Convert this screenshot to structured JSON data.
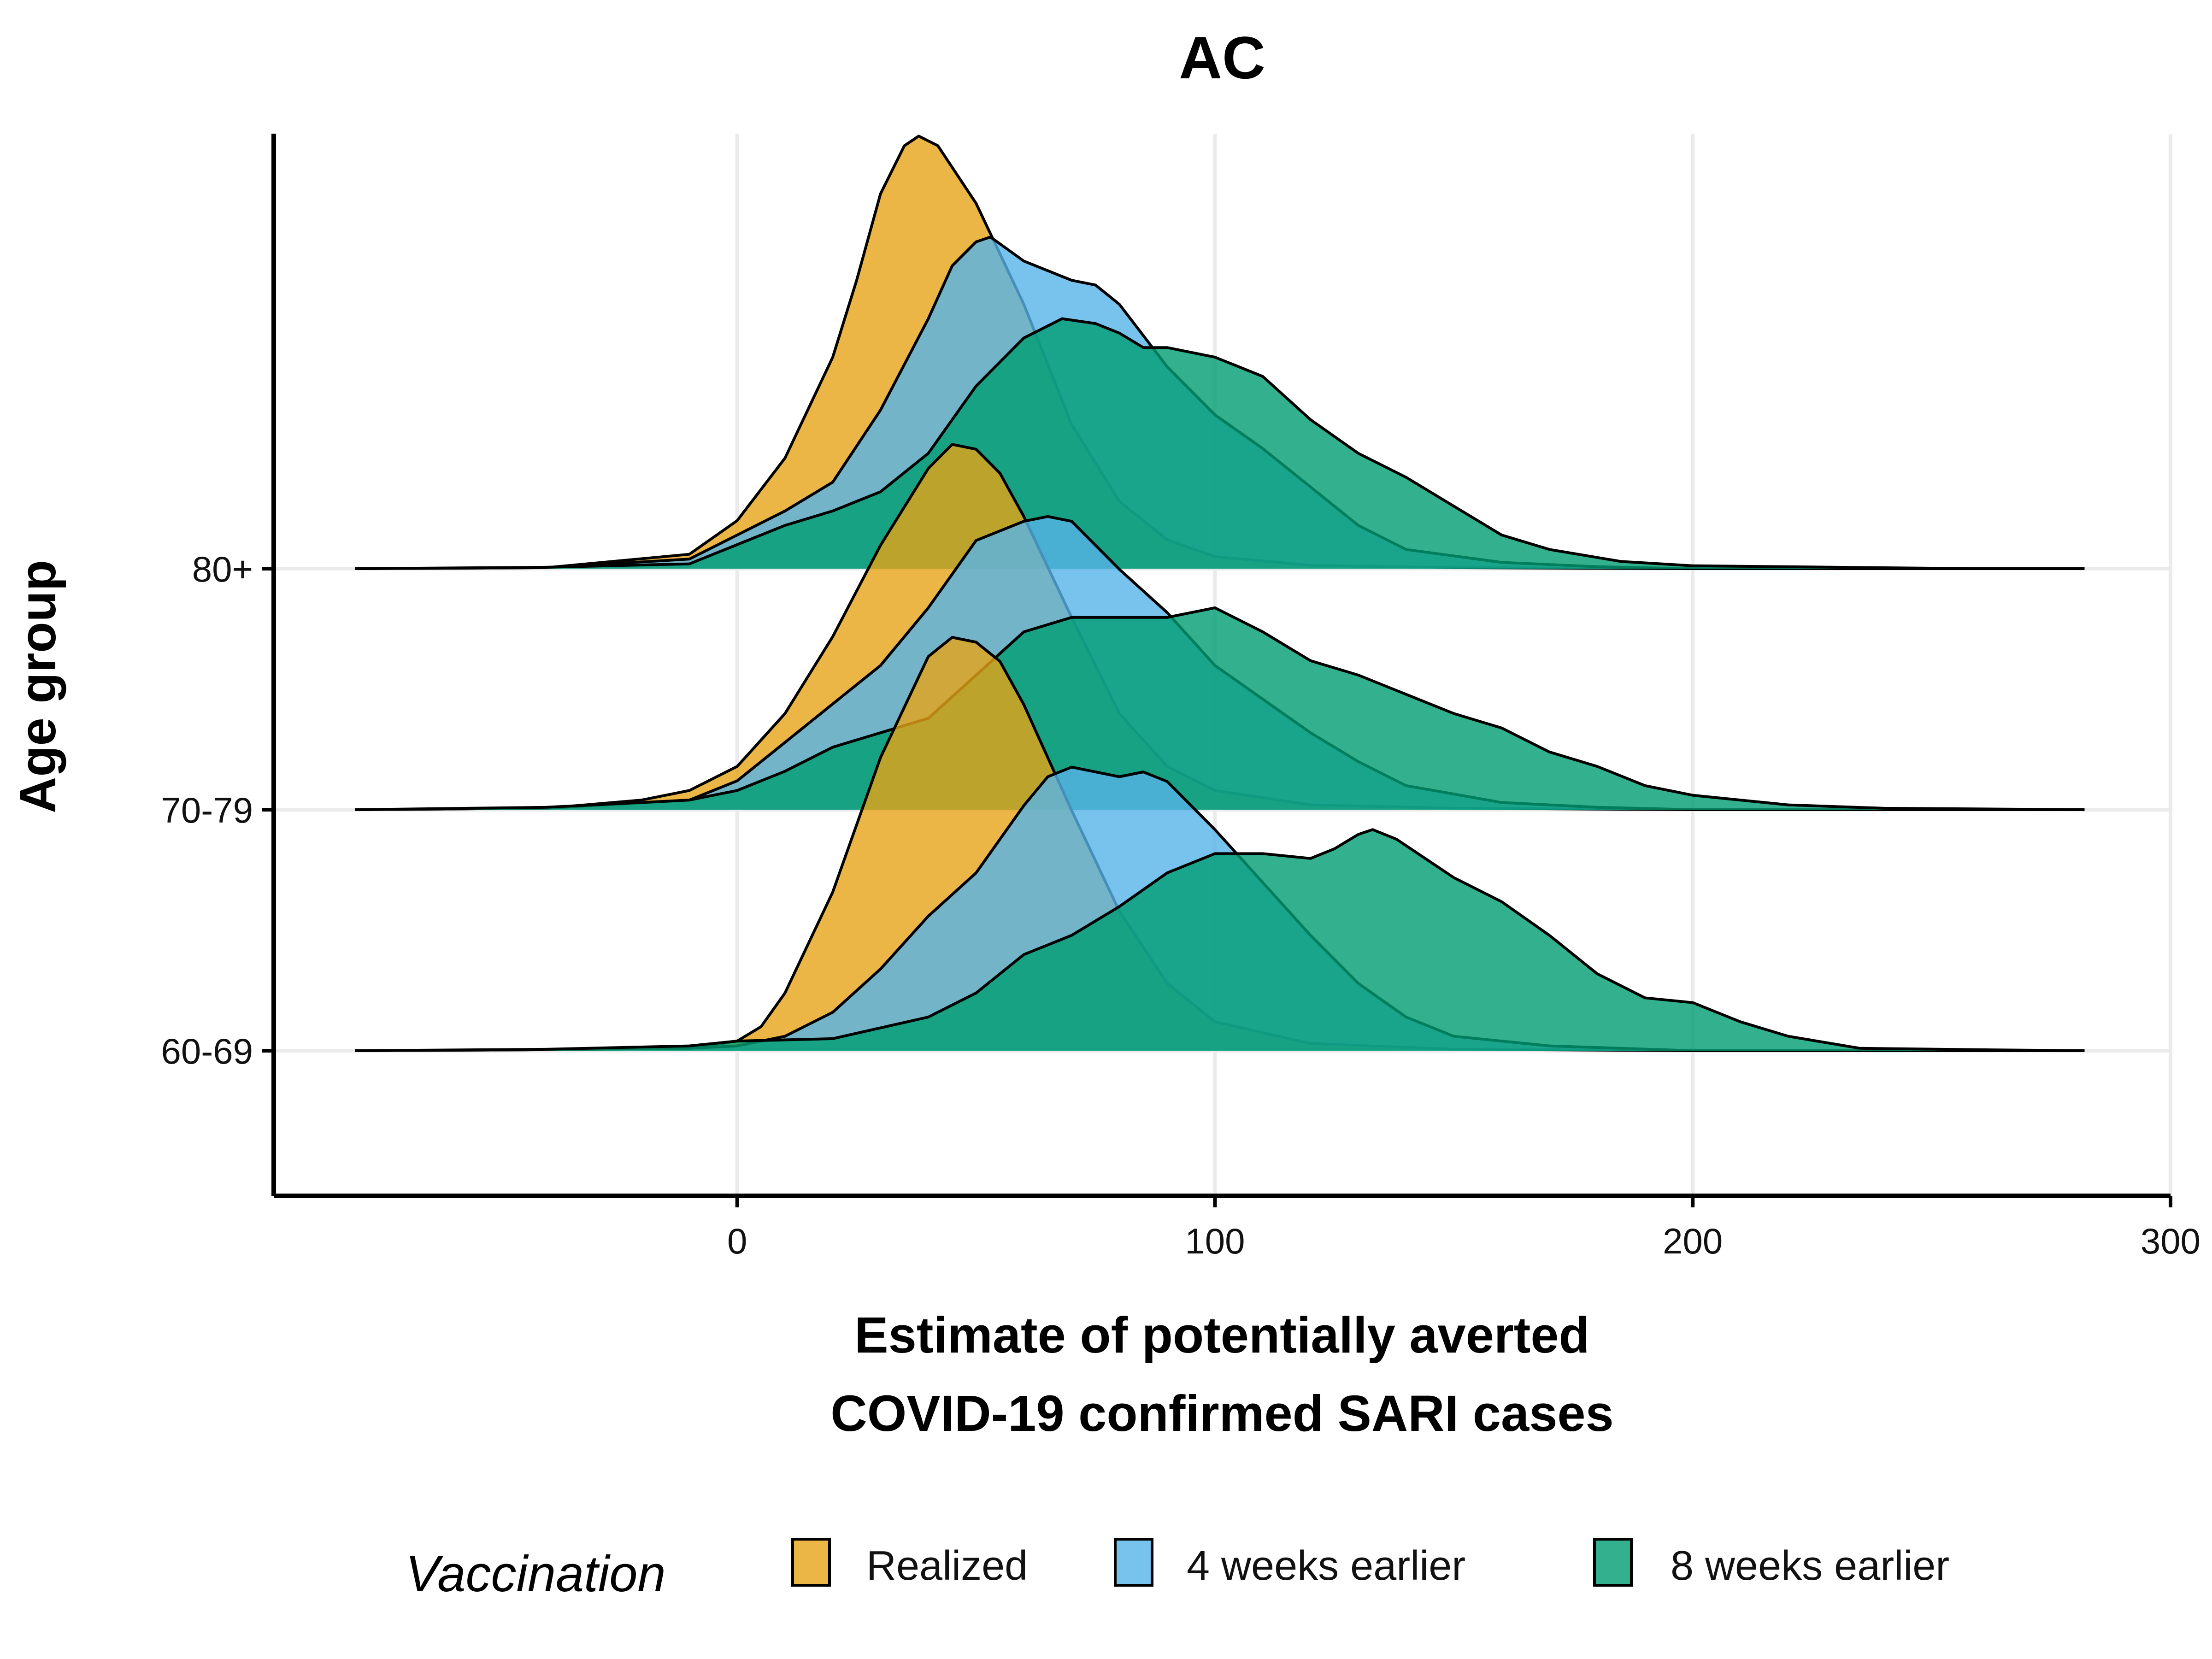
{
  "chart_data": {
    "type": "ridgeline",
    "title": "AC",
    "xlabel_lines": [
      "Estimate of potentially averted",
      "COVID-19 confirmed SARI cases"
    ],
    "ylabel": "Age group",
    "xlim": [
      -97,
      300
    ],
    "x_ticks": [
      0,
      100,
      200,
      300
    ],
    "x_support": [
      -80,
      282
    ],
    "grid": true,
    "legend": {
      "title": "Vaccination",
      "position": "bottom",
      "entries": [
        "Realized",
        "4 weeks earlier",
        "8 weeks earlier"
      ]
    },
    "groups": [
      "80+",
      "70-79",
      "60-69"
    ],
    "colors": {
      "Realized": "#E6A416",
      "4 weeks earlier": "#56B4E9",
      "8 weeks earlier": "#009E73"
    },
    "fill_opacity": 0.8,
    "series": [
      {
        "group": "80+",
        "name": "Realized",
        "points": [
          [
            -80,
            0
          ],
          [
            -40,
            0.2
          ],
          [
            -10,
            3
          ],
          [
            0,
            10
          ],
          [
            10,
            23
          ],
          [
            20,
            44
          ],
          [
            25,
            60
          ],
          [
            30,
            78
          ],
          [
            35,
            88
          ],
          [
            38,
            90
          ],
          [
            42,
            88
          ],
          [
            50,
            76
          ],
          [
            60,
            55
          ],
          [
            70,
            30
          ],
          [
            80,
            14
          ],
          [
            90,
            6
          ],
          [
            100,
            2.5
          ],
          [
            120,
            0.7
          ],
          [
            150,
            0.2
          ],
          [
            200,
            0
          ],
          [
            282,
            0
          ]
        ]
      },
      {
        "group": "80+",
        "name": "4 weeks earlier",
        "points": [
          [
            -80,
            0
          ],
          [
            -40,
            0.2
          ],
          [
            -10,
            2
          ],
          [
            0,
            7
          ],
          [
            10,
            12
          ],
          [
            20,
            18
          ],
          [
            30,
            33
          ],
          [
            40,
            52
          ],
          [
            45,
            63
          ],
          [
            50,
            68
          ],
          [
            53,
            69
          ],
          [
            60,
            64
          ],
          [
            70,
            60
          ],
          [
            75,
            59
          ],
          [
            80,
            55
          ],
          [
            90,
            42
          ],
          [
            100,
            32
          ],
          [
            110,
            25
          ],
          [
            120,
            17
          ],
          [
            130,
            9
          ],
          [
            140,
            4
          ],
          [
            160,
            1.3
          ],
          [
            180,
            0.4
          ],
          [
            200,
            0
          ],
          [
            282,
            0
          ]
        ]
      },
      {
        "group": "80+",
        "name": "8 weeks earlier",
        "points": [
          [
            -80,
            0
          ],
          [
            -40,
            0.3
          ],
          [
            -10,
            1
          ],
          [
            0,
            5
          ],
          [
            10,
            9
          ],
          [
            20,
            12
          ],
          [
            30,
            16
          ],
          [
            40,
            24
          ],
          [
            50,
            38
          ],
          [
            60,
            48
          ],
          [
            68,
            52
          ],
          [
            75,
            51
          ],
          [
            80,
            49
          ],
          [
            85,
            46
          ],
          [
            90,
            46
          ],
          [
            100,
            44
          ],
          [
            110,
            40
          ],
          [
            120,
            31
          ],
          [
            130,
            24
          ],
          [
            140,
            19
          ],
          [
            150,
            13
          ],
          [
            160,
            7
          ],
          [
            170,
            4
          ],
          [
            185,
            1.5
          ],
          [
            200,
            0.6
          ],
          [
            230,
            0.3
          ],
          [
            260,
            0
          ],
          [
            282,
            0
          ]
        ]
      },
      {
        "group": "70-79",
        "name": "Realized",
        "points": [
          [
            -80,
            0
          ],
          [
            -40,
            0.3
          ],
          [
            -20,
            2
          ],
          [
            -10,
            4
          ],
          [
            0,
            9
          ],
          [
            10,
            20
          ],
          [
            20,
            36
          ],
          [
            30,
            55
          ],
          [
            40,
            71
          ],
          [
            45,
            76
          ],
          [
            50,
            75
          ],
          [
            55,
            70
          ],
          [
            60,
            61
          ],
          [
            70,
            40
          ],
          [
            80,
            20
          ],
          [
            90,
            9
          ],
          [
            100,
            4
          ],
          [
            120,
            1
          ],
          [
            150,
            0.3
          ],
          [
            200,
            0
          ],
          [
            282,
            0
          ]
        ]
      },
      {
        "group": "70-79",
        "name": "4 weeks earlier",
        "points": [
          [
            -80,
            0
          ],
          [
            -40,
            0.3
          ],
          [
            -10,
            2
          ],
          [
            0,
            6
          ],
          [
            10,
            14
          ],
          [
            20,
            22
          ],
          [
            30,
            30
          ],
          [
            40,
            42
          ],
          [
            50,
            56
          ],
          [
            60,
            60
          ],
          [
            65,
            61
          ],
          [
            70,
            60
          ],
          [
            80,
            50
          ],
          [
            90,
            41
          ],
          [
            100,
            30
          ],
          [
            110,
            23
          ],
          [
            120,
            16
          ],
          [
            130,
            10
          ],
          [
            140,
            5
          ],
          [
            160,
            1.5
          ],
          [
            180,
            0.5
          ],
          [
            200,
            0
          ],
          [
            282,
            0
          ]
        ]
      },
      {
        "group": "70-79",
        "name": "8 weeks earlier",
        "points": [
          [
            -80,
            0
          ],
          [
            -40,
            0.5
          ],
          [
            -10,
            2
          ],
          [
            0,
            4
          ],
          [
            10,
            8
          ],
          [
            20,
            13
          ],
          [
            30,
            16
          ],
          [
            40,
            19
          ],
          [
            50,
            28
          ],
          [
            60,
            37
          ],
          [
            70,
            40
          ],
          [
            80,
            40
          ],
          [
            90,
            40
          ],
          [
            100,
            42
          ],
          [
            110,
            37
          ],
          [
            120,
            31
          ],
          [
            130,
            28
          ],
          [
            140,
            24
          ],
          [
            150,
            20
          ],
          [
            160,
            17
          ],
          [
            170,
            12
          ],
          [
            180,
            9
          ],
          [
            190,
            5
          ],
          [
            200,
            3
          ],
          [
            220,
            1
          ],
          [
            240,
            0.3
          ],
          [
            282,
            0
          ]
        ]
      },
      {
        "group": "60-69",
        "name": "Realized",
        "points": [
          [
            -80,
            0
          ],
          [
            -40,
            0.2
          ],
          [
            -10,
            0.5
          ],
          [
            0,
            2
          ],
          [
            5,
            5
          ],
          [
            10,
            12
          ],
          [
            20,
            33
          ],
          [
            30,
            61
          ],
          [
            40,
            82
          ],
          [
            45,
            86
          ],
          [
            50,
            85
          ],
          [
            55,
            81
          ],
          [
            60,
            72
          ],
          [
            70,
            50
          ],
          [
            80,
            29
          ],
          [
            90,
            14
          ],
          [
            100,
            6
          ],
          [
            120,
            1.5
          ],
          [
            150,
            0.3
          ],
          [
            200,
            0
          ],
          [
            282,
            0
          ]
        ]
      },
      {
        "group": "60-69",
        "name": "4 weeks earlier",
        "points": [
          [
            -80,
            0
          ],
          [
            -40,
            0.2
          ],
          [
            -10,
            0.5
          ],
          [
            0,
            1
          ],
          [
            10,
            3
          ],
          [
            20,
            8
          ],
          [
            30,
            17
          ],
          [
            40,
            28
          ],
          [
            50,
            37
          ],
          [
            60,
            51
          ],
          [
            65,
            57
          ],
          [
            70,
            59
          ],
          [
            75,
            58
          ],
          [
            80,
            57
          ],
          [
            85,
            58
          ],
          [
            90,
            56
          ],
          [
            100,
            46
          ],
          [
            110,
            35
          ],
          [
            120,
            24
          ],
          [
            130,
            14
          ],
          [
            140,
            7
          ],
          [
            150,
            3
          ],
          [
            170,
            1
          ],
          [
            200,
            0
          ],
          [
            282,
            0
          ]
        ]
      },
      {
        "group": "60-69",
        "name": "8 weeks earlier",
        "points": [
          [
            -80,
            0
          ],
          [
            -40,
            0.3
          ],
          [
            -10,
            1
          ],
          [
            0,
            2
          ],
          [
            20,
            2.5
          ],
          [
            40,
            7
          ],
          [
            50,
            12
          ],
          [
            60,
            20
          ],
          [
            70,
            24
          ],
          [
            80,
            30
          ],
          [
            90,
            37
          ],
          [
            100,
            41
          ],
          [
            110,
            41
          ],
          [
            120,
            40
          ],
          [
            125,
            42
          ],
          [
            130,
            45
          ],
          [
            133,
            46
          ],
          [
            138,
            44
          ],
          [
            150,
            36
          ],
          [
            160,
            31
          ],
          [
            170,
            24
          ],
          [
            180,
            16
          ],
          [
            190,
            11
          ],
          [
            200,
            10
          ],
          [
            210,
            6
          ],
          [
            220,
            3
          ],
          [
            235,
            0.5
          ],
          [
            260,
            0.2
          ],
          [
            282,
            0
          ]
        ]
      }
    ]
  }
}
